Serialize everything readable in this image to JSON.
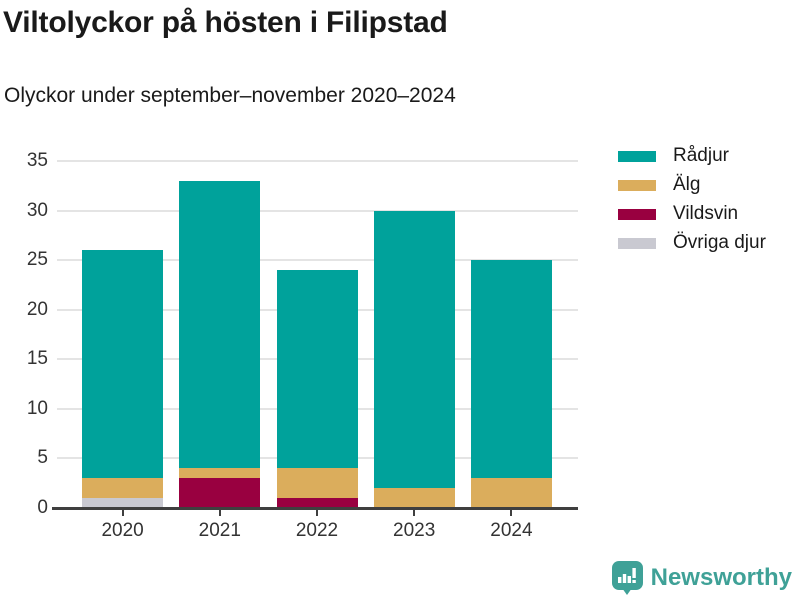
{
  "header": {
    "title": "Viltolyckor på hösten i Filipstad",
    "subtitle": "Olyckor under september–november 2020–2024"
  },
  "footer": {
    "brand": "Newsworthy",
    "logo_icon": "bar-chart-speech-bubble-icon",
    "brand_color": "#3fa197"
  },
  "colors": {
    "background": "#ffffff",
    "title_text": "#1a1a1a",
    "axis_text": "#333333",
    "axis_line": "#3f3f3f",
    "gridline": "#e4e4e4",
    "radjur_teal": "#00a29b",
    "alg_gold": "#dbad5c",
    "vildsvin_maroon": "#990040",
    "ovriga_gray": "#c9c9d1"
  },
  "chart_data": {
    "type": "bar",
    "stacked": true,
    "title": "Viltolyckor på hösten i Filipstad",
    "subtitle": "Olyckor under september–november 2020–2024",
    "xlabel": "",
    "ylabel": "",
    "categories": [
      "2020",
      "2021",
      "2022",
      "2023",
      "2024"
    ],
    "series": [
      {
        "name": "Rådjur",
        "color": "#00a29b",
        "values": [
          23,
          29,
          20,
          28,
          22
        ]
      },
      {
        "name": "Älg",
        "color": "#dbad5c",
        "values": [
          2,
          1,
          3,
          2,
          3
        ]
      },
      {
        "name": "Vildsvin",
        "color": "#990040",
        "values": [
          0,
          3,
          1,
          0,
          0
        ]
      },
      {
        "name": "Övriga djur",
        "color": "#c9c9d1",
        "values": [
          1,
          0,
          0,
          0,
          0
        ]
      }
    ],
    "totals": [
      26,
      33,
      24,
      30,
      25
    ],
    "stack_order_bottom_to_top": [
      "Övriga djur",
      "Vildsvin",
      "Älg",
      "Rådjur"
    ],
    "ylim": [
      0,
      35
    ],
    "yticks": [
      0,
      5,
      10,
      15,
      20,
      25,
      30,
      35
    ],
    "grid": true,
    "legend_position": "top-right",
    "legend_order": [
      "Rådjur",
      "Älg",
      "Vildsvin",
      "Övriga djur"
    ]
  }
}
